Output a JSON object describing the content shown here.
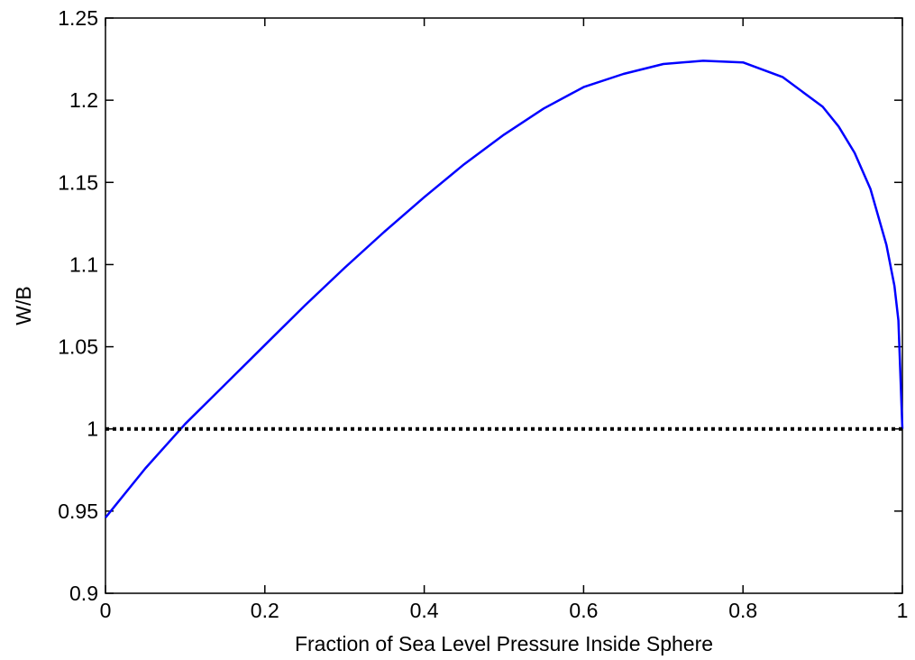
{
  "chart_data": {
    "type": "line",
    "title": "",
    "xlabel": "Fraction of Sea Level Pressure Inside Sphere",
    "ylabel": "W/B",
    "xlim": [
      0,
      1
    ],
    "ylim": [
      0.9,
      1.25
    ],
    "grid": false,
    "x_ticks": [
      "0",
      "0.2",
      "0.4",
      "0.6",
      "0.8",
      "1"
    ],
    "y_ticks": [
      "0.9",
      "0.95",
      "1",
      "1.05",
      "1.1",
      "1.15",
      "1.2",
      "1.25"
    ],
    "series": [
      {
        "color": "#0000ff",
        "style": "solid",
        "x": [
          0,
          0.05,
          0.1,
          0.15,
          0.2,
          0.25,
          0.3,
          0.35,
          0.4,
          0.45,
          0.5,
          0.55,
          0.6,
          0.65,
          0.7,
          0.75,
          0.8,
          0.85,
          0.9,
          0.92,
          0.94,
          0.96,
          0.98,
          0.99,
          0.995,
          1.0
        ],
        "y": [
          0.946,
          0.976,
          1.003,
          1.027,
          1.051,
          1.075,
          1.098,
          1.12,
          1.141,
          1.161,
          1.179,
          1.195,
          1.208,
          1.216,
          1.222,
          1.224,
          1.223,
          1.214,
          1.196,
          1.184,
          1.168,
          1.146,
          1.112,
          1.087,
          1.066,
          1.0
        ]
      },
      {
        "color": "#000000",
        "style": "dotted",
        "x": [
          0,
          1
        ],
        "y": [
          1,
          1
        ]
      }
    ]
  }
}
